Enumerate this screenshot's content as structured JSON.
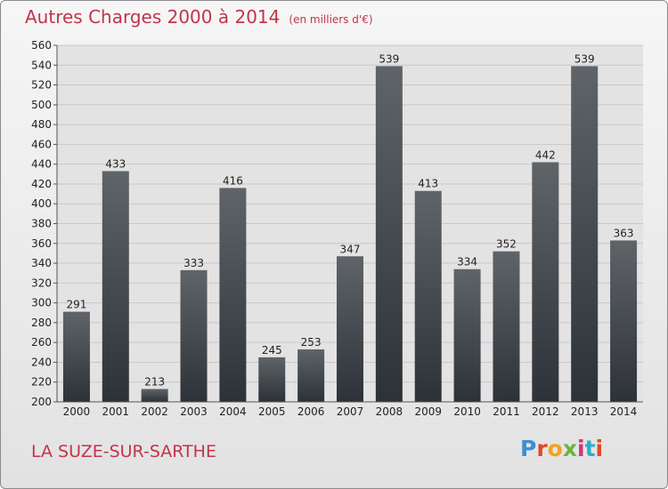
{
  "chart_data": {
    "type": "bar",
    "title": "Autres Charges 2000 à 2014",
    "subtitle": "(en milliers d'€)",
    "categories": [
      "2000",
      "2001",
      "2002",
      "2003",
      "2004",
      "2005",
      "2006",
      "2007",
      "2008",
      "2009",
      "2010",
      "2011",
      "2012",
      "2013",
      "2014"
    ],
    "values": [
      291,
      433,
      213,
      333,
      416,
      245,
      253,
      347,
      539,
      413,
      334,
      352,
      442,
      539,
      363
    ],
    "ylim": [
      200,
      560
    ],
    "yticks": [
      200,
      220,
      240,
      260,
      280,
      300,
      320,
      340,
      360,
      380,
      400,
      420,
      440,
      460,
      480,
      500,
      520,
      540,
      560
    ],
    "grid": true,
    "legend": "none",
    "bar_color_top": "#5f6469",
    "bar_color_bottom": "#2c3237"
  },
  "footer": {
    "city": "LA SUZE-SUR-SARTHE",
    "brand": "Proxiti",
    "brand_colors": [
      "#3a8fd8",
      "#e0492a",
      "#f2a21c",
      "#6cb33f",
      "#d9307a",
      "#2bb0c8",
      "#e0492a"
    ]
  }
}
